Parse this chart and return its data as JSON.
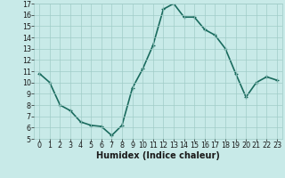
{
  "x": [
    0,
    1,
    2,
    3,
    4,
    5,
    6,
    7,
    8,
    9,
    10,
    11,
    12,
    13,
    14,
    15,
    16,
    17,
    18,
    19,
    20,
    21,
    22,
    23
  ],
  "y": [
    10.8,
    10.0,
    8.0,
    7.5,
    6.5,
    6.2,
    6.1,
    5.3,
    6.2,
    9.5,
    11.2,
    13.3,
    16.5,
    17.0,
    15.8,
    15.8,
    14.7,
    14.2,
    13.0,
    10.8,
    8.7,
    10.0,
    10.5,
    10.2
  ],
  "line_color": "#1a6b5e",
  "marker_color": "#1a6b5e",
  "bg_color": "#c8eae8",
  "grid_color": "#a0ccc8",
  "xlabel": "Humidex (Indice chaleur)",
  "ylim": [
    5,
    17
  ],
  "yticks": [
    5,
    6,
    7,
    8,
    9,
    10,
    11,
    12,
    13,
    14,
    15,
    16,
    17
  ],
  "font_color": "#1a1a1a",
  "label_fontsize": 7,
  "tick_fontsize": 5.8,
  "linewidth": 1.2,
  "markersize": 3.5
}
